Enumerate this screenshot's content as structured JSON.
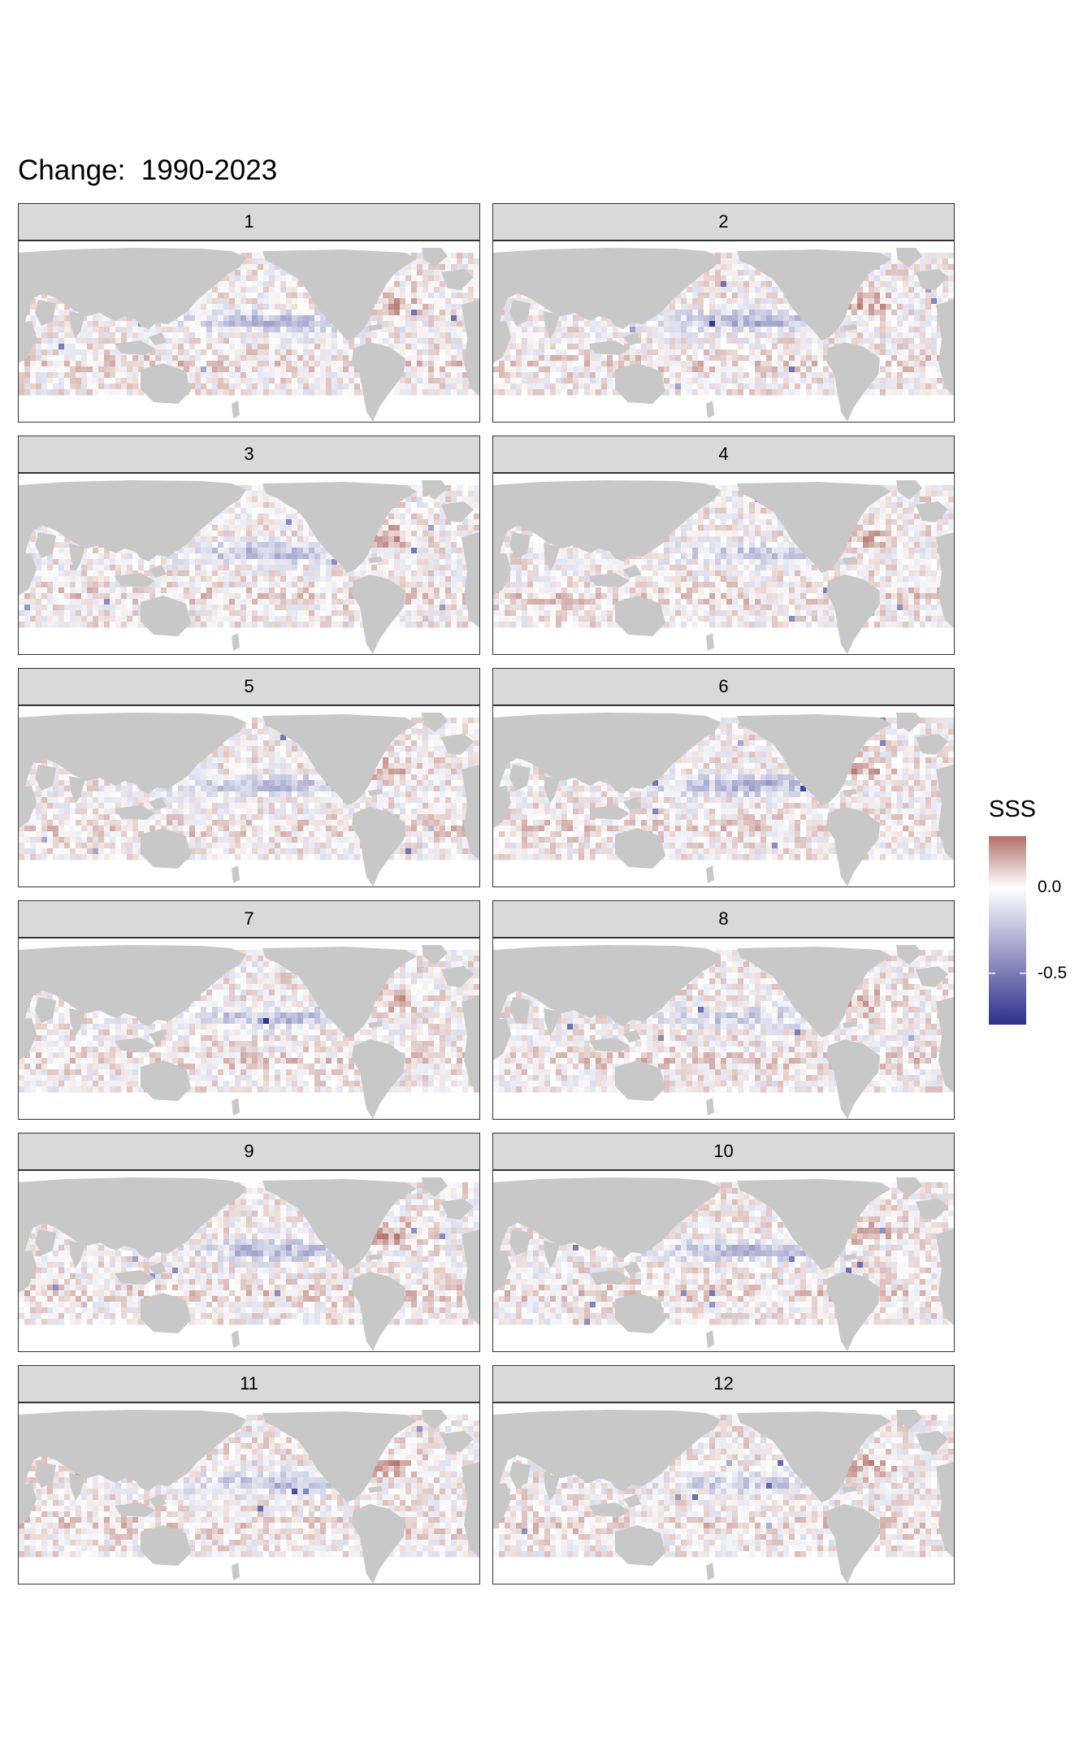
{
  "title": "Change:  1990-2023",
  "colors": {
    "land": "#c8c8c8",
    "ocean": "#ffffff",
    "positive": "#b2706a",
    "neutral": "#ffffff",
    "negative": "#2c2f8c",
    "strip_background": "#d9d9d9",
    "panel_border": "#333333"
  },
  "chart_data": {
    "type": "heatmap",
    "variable": "SSS",
    "facet_labels": [
      "1",
      "2",
      "3",
      "4",
      "5",
      "6",
      "7",
      "8",
      "9",
      "10",
      "11",
      "12"
    ],
    "layout": "6 rows x 2 columns of world maps",
    "legend": {
      "title": "SSS",
      "placement": "right",
      "tick_labels": [
        "0.0",
        "-0.5"
      ],
      "tick_values": [
        0.0,
        -0.5
      ],
      "range": [
        -0.8,
        0.3
      ]
    }
  }
}
